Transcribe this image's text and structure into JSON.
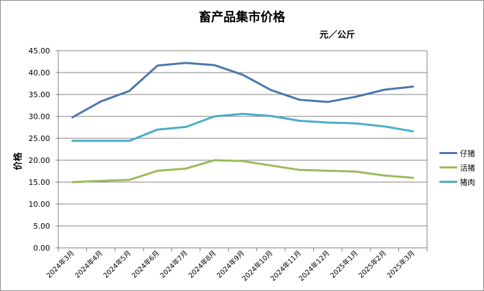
{
  "chart_data": {
    "type": "line",
    "title": "畜产品集市价格",
    "unit": "元／公斤",
    "ylabel": "价格",
    "xlabel": "",
    "ylim": [
      0,
      45
    ],
    "yticks": [
      "0.00",
      "5.00",
      "10.00",
      "15.00",
      "20.00",
      "25.00",
      "30.00",
      "35.00",
      "40.00",
      "45.00"
    ],
    "categories": [
      "2024年3月",
      "2024年4月",
      "2024年5月",
      "2024年6月",
      "2024年7月",
      "2024年8月",
      "2024年9月",
      "2024年10月",
      "2024年11月",
      "2024年12月",
      "2025年1月",
      "2025年2月",
      "2025年3月"
    ],
    "grid": true,
    "legend_position": "right",
    "series": [
      {
        "name": "仔猪",
        "color": "#4a76ad",
        "values": [
          29.8,
          33.4,
          35.8,
          41.6,
          42.2,
          41.7,
          39.5,
          36.0,
          33.8,
          33.3,
          34.5,
          36.1,
          36.8
        ]
      },
      {
        "name": "活猪",
        "color": "#9bbb59",
        "values": [
          15.0,
          15.3,
          15.5,
          17.6,
          18.1,
          20.0,
          19.8,
          18.8,
          17.8,
          17.6,
          17.4,
          16.5,
          16.0
        ]
      },
      {
        "name": "猪肉",
        "color": "#4bacc6",
        "values": [
          24.4,
          24.4,
          24.4,
          27.0,
          27.6,
          30.0,
          30.6,
          30.1,
          29.0,
          28.6,
          28.4,
          27.7,
          26.6
        ]
      }
    ]
  }
}
